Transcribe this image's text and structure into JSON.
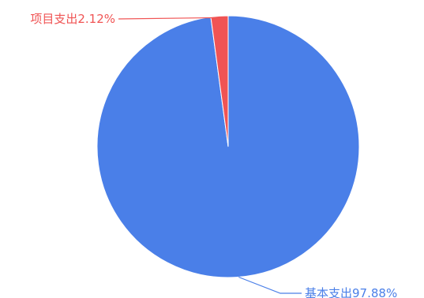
{
  "chart_data": {
    "type": "pie",
    "title": "",
    "slices": [
      {
        "label": "基本支出97.88%",
        "name": "基本支出",
        "value": 97.88,
        "color": "#4a7fe8"
      },
      {
        "label": "项目支出2.12%",
        "name": "项目支出",
        "value": 2.12,
        "color": "#f05454"
      }
    ],
    "legend": "none",
    "label_placement": "outside-leader-lines"
  }
}
